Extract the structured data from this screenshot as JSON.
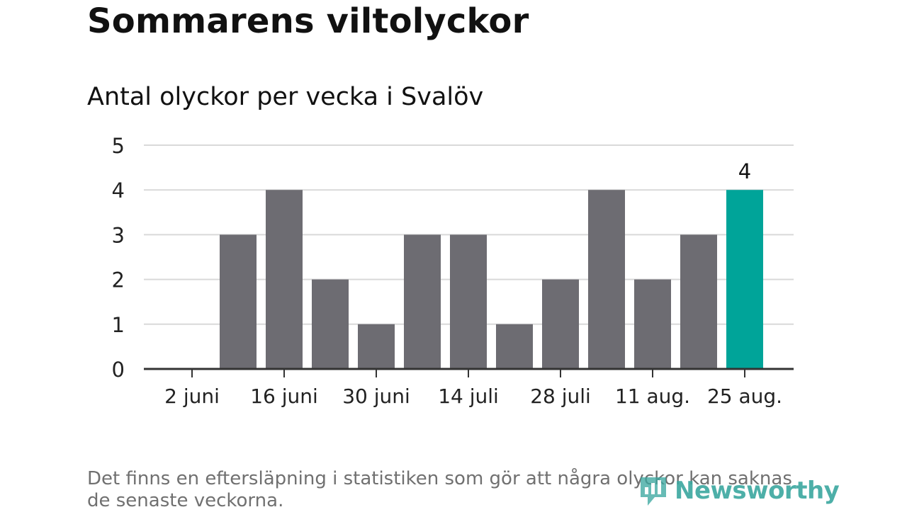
{
  "title": "Sommarens viltolyckor",
  "subtitle": "Antal olyckor per vecka i Svalöv",
  "note": "Det finns en eftersläpning i statistiken som gör att några olyckor kan saknas de senaste veckorna.",
  "logo": {
    "text": "Newsworthy",
    "icon": "newsworthy-logo-icon"
  },
  "colors": {
    "bar": "#6d6c72",
    "highlight": "#00a499",
    "grid": "#d9d9d9",
    "axis": "#333333",
    "logo": "#3aa79f"
  },
  "chart_data": {
    "type": "bar",
    "values": [
      0,
      3,
      4,
      2,
      1,
      3,
      3,
      1,
      2,
      4,
      2,
      3,
      4
    ],
    "x_tick_labels": [
      "2 juni",
      "16 juni",
      "30 juni",
      "14 juli",
      "28 juli",
      "11 aug.",
      "25 aug."
    ],
    "x_tick_every": 2,
    "ylim": [
      0,
      5
    ],
    "yticks": [
      0,
      1,
      2,
      3,
      4,
      5
    ],
    "highlight_index": 12,
    "highlight_label": "4",
    "grid": true,
    "legend": "none"
  }
}
